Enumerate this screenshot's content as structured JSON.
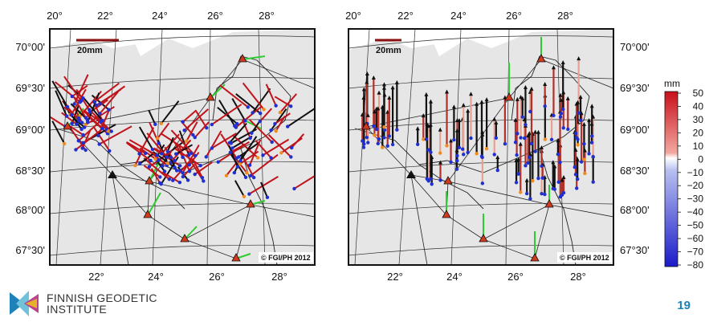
{
  "maps": [
    {
      "name": "horizontal-velocity-map",
      "lon_labels_top": [
        "20°",
        "22°",
        "24°",
        "26°",
        "28°"
      ],
      "lon_labels_bottom": [
        "22°",
        "24°",
        "26°",
        "28°"
      ],
      "lat_labels": [
        "70°00'",
        "69°30'",
        "69°00'",
        "68°30'",
        "68°00'",
        "67°30'"
      ],
      "scale_label": "20mm",
      "credit": "© FGI/PH 2012"
    },
    {
      "name": "vertical-velocity-map",
      "lon_labels_top": [
        "20°",
        "22°",
        "24°",
        "26°",
        "28°"
      ],
      "lon_labels_bottom": [
        "22°",
        "24°",
        "26°",
        "28°"
      ],
      "lat_labels": [
        "70°00'",
        "69°30'",
        "69°00'",
        "68°30'",
        "68°00'",
        "67°30'"
      ],
      "scale_label": "20mm",
      "credit": "© FGI/PH 2012"
    }
  ],
  "colorbar": {
    "unit": "mm",
    "ticks": [
      "50",
      "40",
      "30",
      "20",
      "10",
      "0",
      "−10",
      "−20",
      "−30",
      "−40",
      "−50",
      "−60",
      "−70",
      "−80"
    ],
    "top_color": "#d7191c",
    "mid_color": "#ffffff",
    "bottom_color": "#2b2bd0"
  },
  "colors": {
    "land": "#e6e6e6",
    "sea": "#ffffff",
    "arrow_red": "#c0141b",
    "arrow_black": "#111111",
    "arrow_green": "#2ecc2e",
    "station_blue": "#2030d0",
    "station_orange": "#f08c1e",
    "triangle_red": "#d23a1e",
    "scale_bar": "#8b1010"
  },
  "logo": {
    "line1": "FINNISH GEODETIC",
    "line2": "INSTITUTE"
  },
  "page_number": "19"
}
